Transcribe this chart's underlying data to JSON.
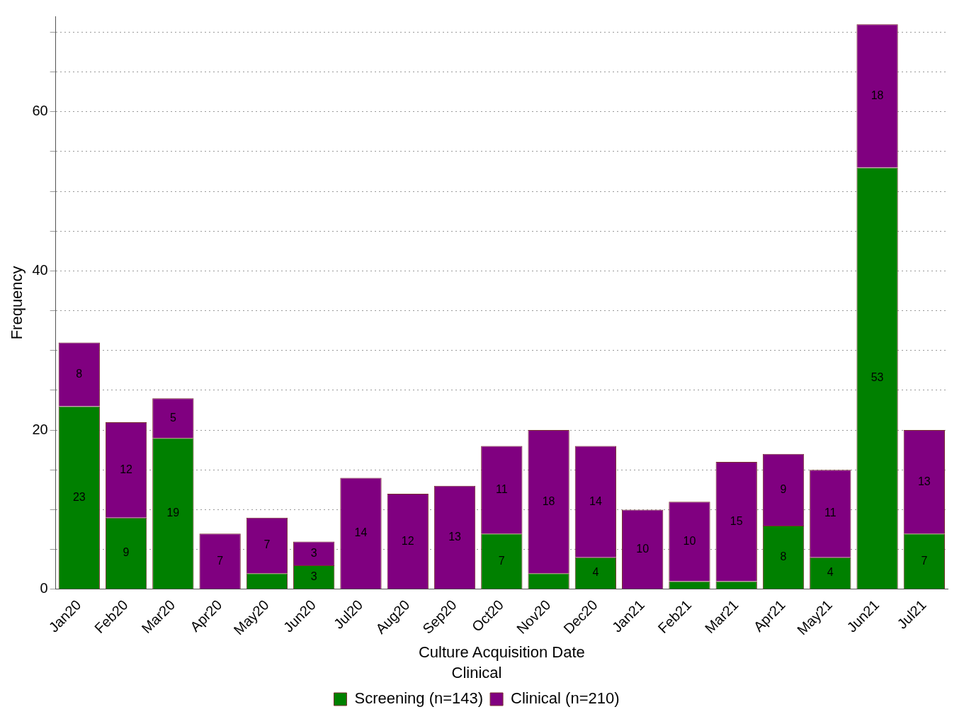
{
  "chart_data": {
    "type": "bar",
    "xlabel": "Culture Acquisition Date",
    "ylabel": "Frequency",
    "legend_title": "Clinical",
    "stacked": true,
    "legend": "bottom",
    "grid": "y",
    "line_style": "dotted",
    "categories": [
      "Jan20",
      "Feb20",
      "Mar20",
      "Apr20",
      "May20",
      "Jun20",
      "Jul20",
      "Aug20",
      "Sep20",
      "Oct20",
      "Nov20",
      "Dec20",
      "Jan21",
      "Feb21",
      "Mar21",
      "Apr21",
      "May21",
      "Jun21",
      "Jul21"
    ],
    "ylim": [
      0,
      72
    ],
    "yticks": [
      0,
      {
        "value": 5,
        "label": null
      },
      {
        "value": 10,
        "label": null
      },
      {
        "value": 15,
        "label": null
      },
      20,
      {
        "value": 25,
        "label": null
      },
      {
        "value": 30,
        "label": null
      },
      {
        "value": 35,
        "label": null
      },
      40,
      {
        "value": 45,
        "label": null
      },
      {
        "value": 50,
        "label": null
      },
      {
        "value": 55,
        "label": null
      },
      60,
      {
        "value": 65,
        "label": null
      },
      {
        "value": 70,
        "label": null
      }
    ],
    "series": [
      {
        "name": "Screening (n=143)",
        "color": "#008000",
        "values": [
          23,
          9,
          19,
          0,
          2,
          3,
          0,
          0,
          0,
          7,
          2,
          4,
          0,
          1,
          1,
          8,
          4,
          53,
          7
        ],
        "value_labels": [
          "23",
          "9",
          "19",
          null,
          null,
          "3",
          null,
          null,
          null,
          "7",
          null,
          "4",
          null,
          null,
          null,
          "8",
          "4",
          "53",
          "7"
        ]
      },
      {
        "name": "Clinical (n=210)",
        "color": "#800080",
        "values": [
          8,
          12,
          5,
          7,
          7,
          3,
          14,
          12,
          13,
          11,
          18,
          14,
          10,
          10,
          15,
          9,
          11,
          18,
          13
        ],
        "value_labels": [
          "8",
          "12",
          "5",
          "7",
          "7",
          "3",
          "14",
          "12",
          "13",
          "11",
          "18",
          "14",
          "10",
          "10",
          "15",
          "9",
          "11",
          "18",
          "13"
        ]
      }
    ]
  }
}
